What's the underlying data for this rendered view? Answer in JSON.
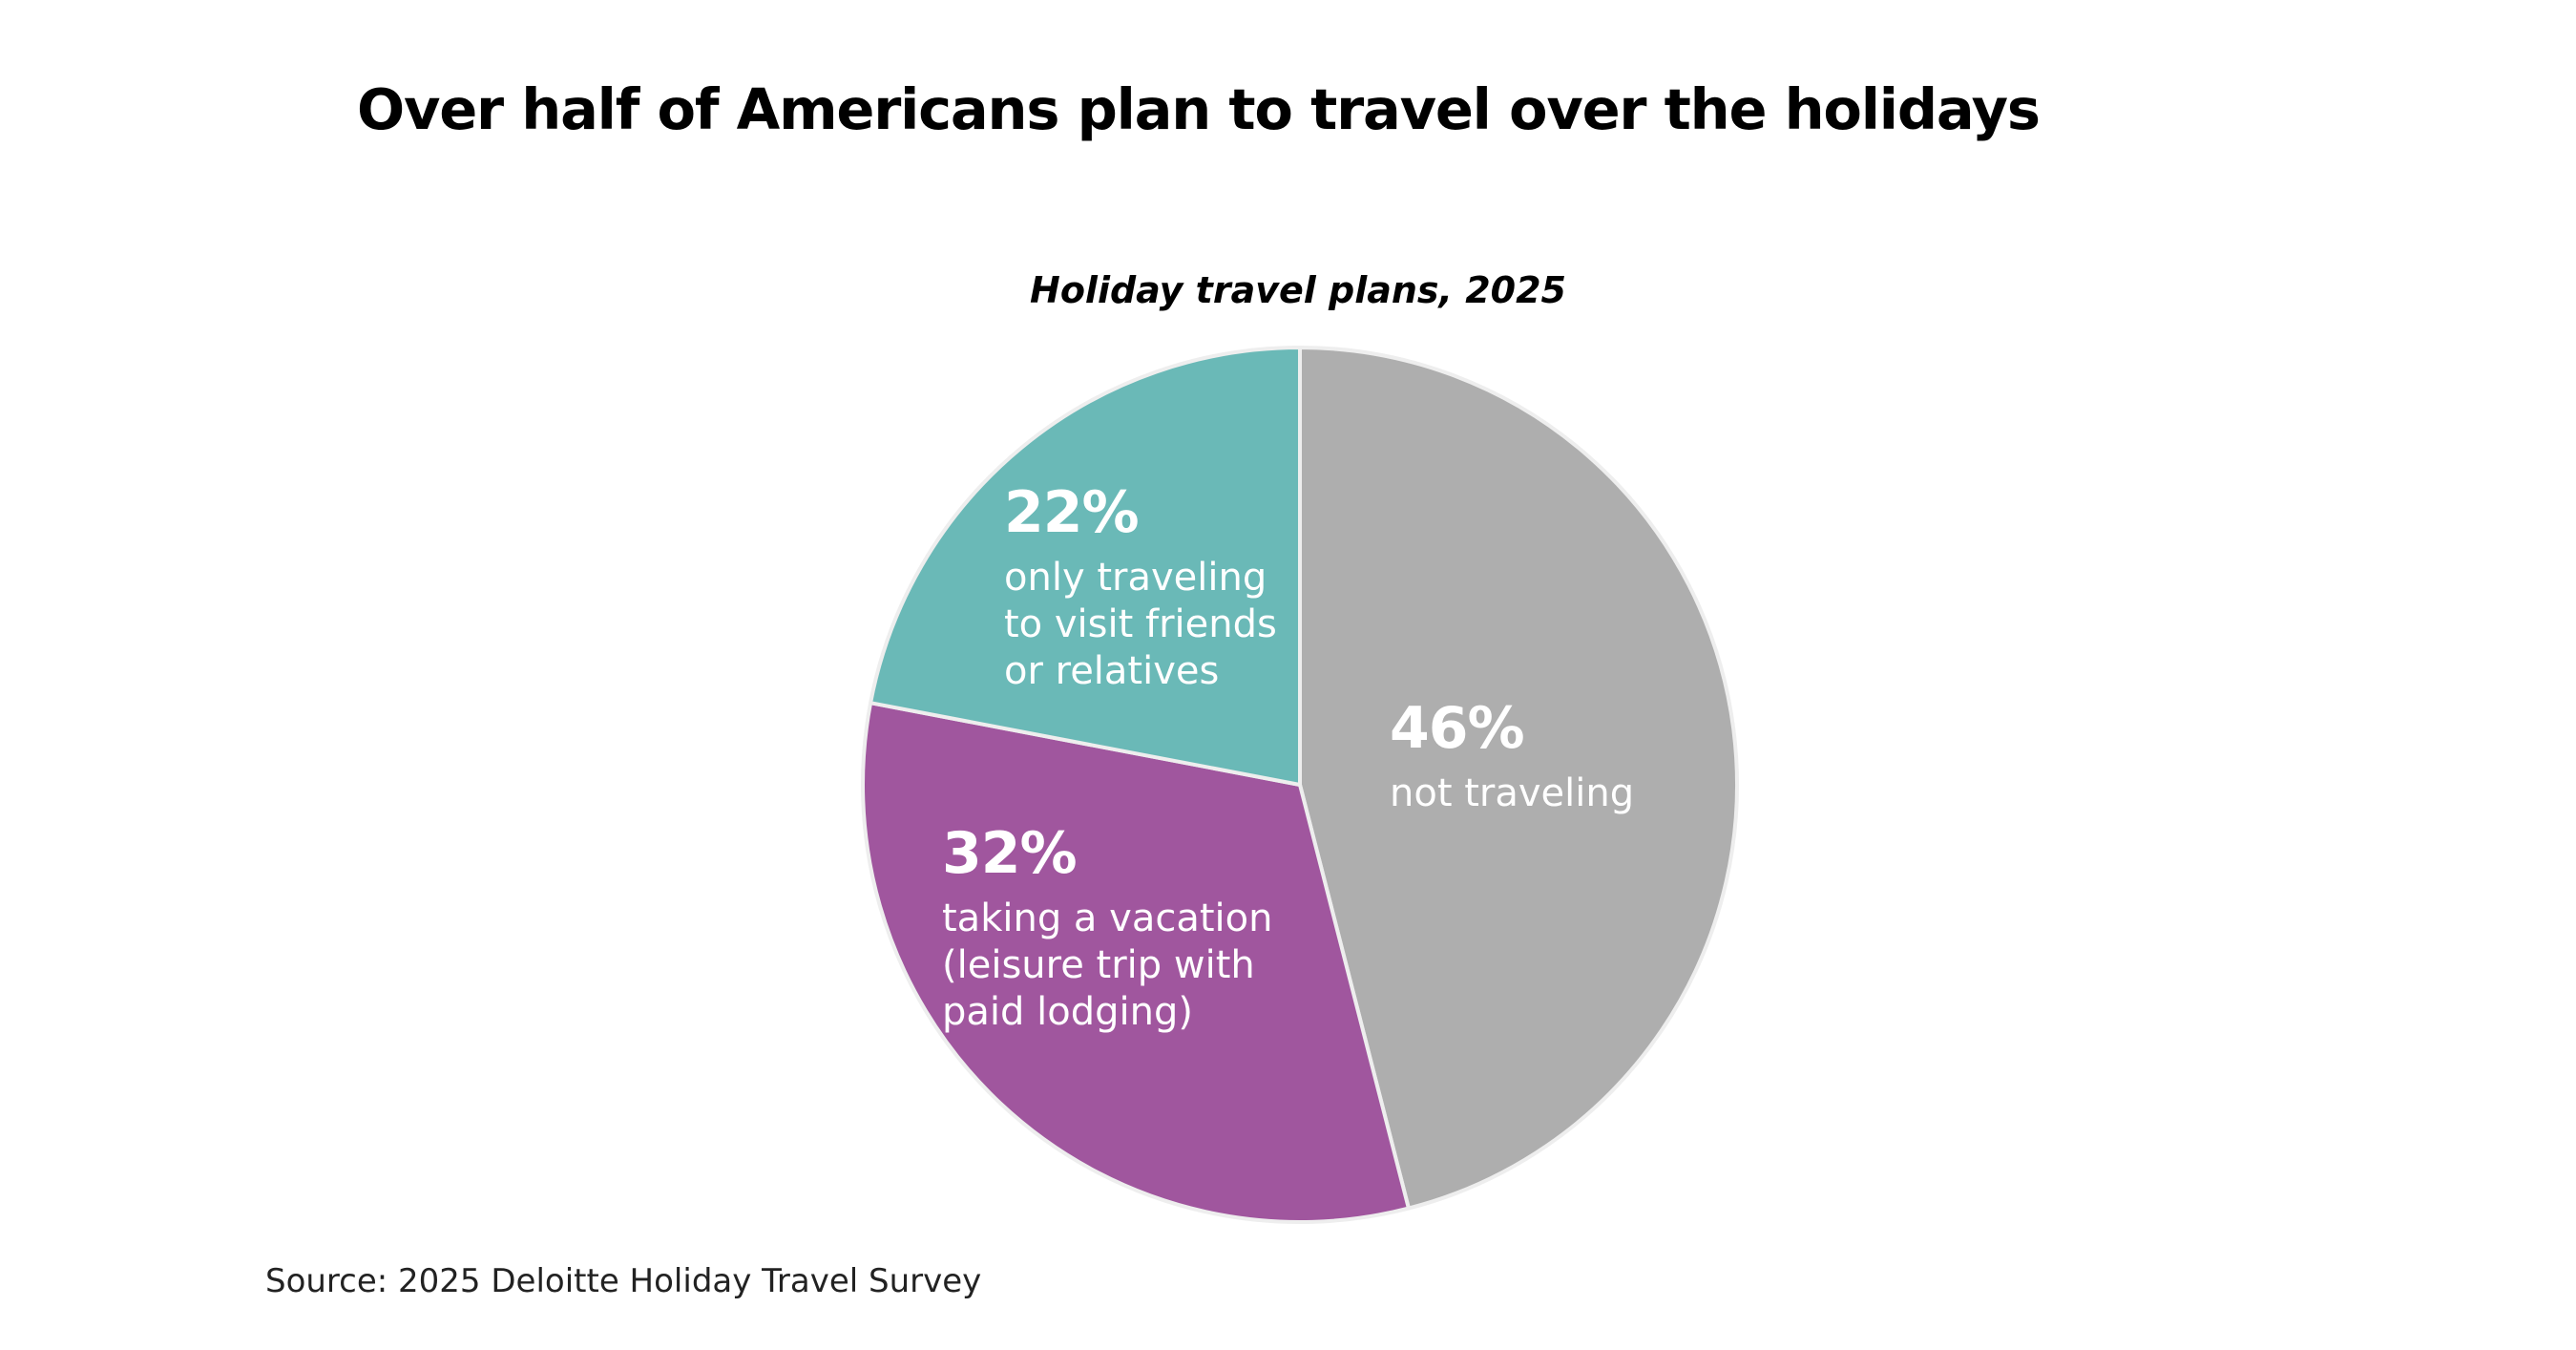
{
  "chart_data": {
    "type": "pie",
    "title": "Over half of Americans plan to travel over the holidays",
    "subtitle": "Holiday travel plans, 2025",
    "slices": [
      {
        "value": 46,
        "label": "46%",
        "description": "not traveling",
        "color": "#AEAEAE"
      },
      {
        "value": 32,
        "label": "32%",
        "description": "taking a vacation\n(leisure trip with\npaid lodging)",
        "color": "#A0569E"
      },
      {
        "value": 22,
        "label": "22%",
        "description": "only traveling\nto visit friends\nor relatives",
        "color": "#6AB9B7"
      }
    ],
    "source": "Source: 2025 Deloitte Holiday Travel Survey"
  }
}
